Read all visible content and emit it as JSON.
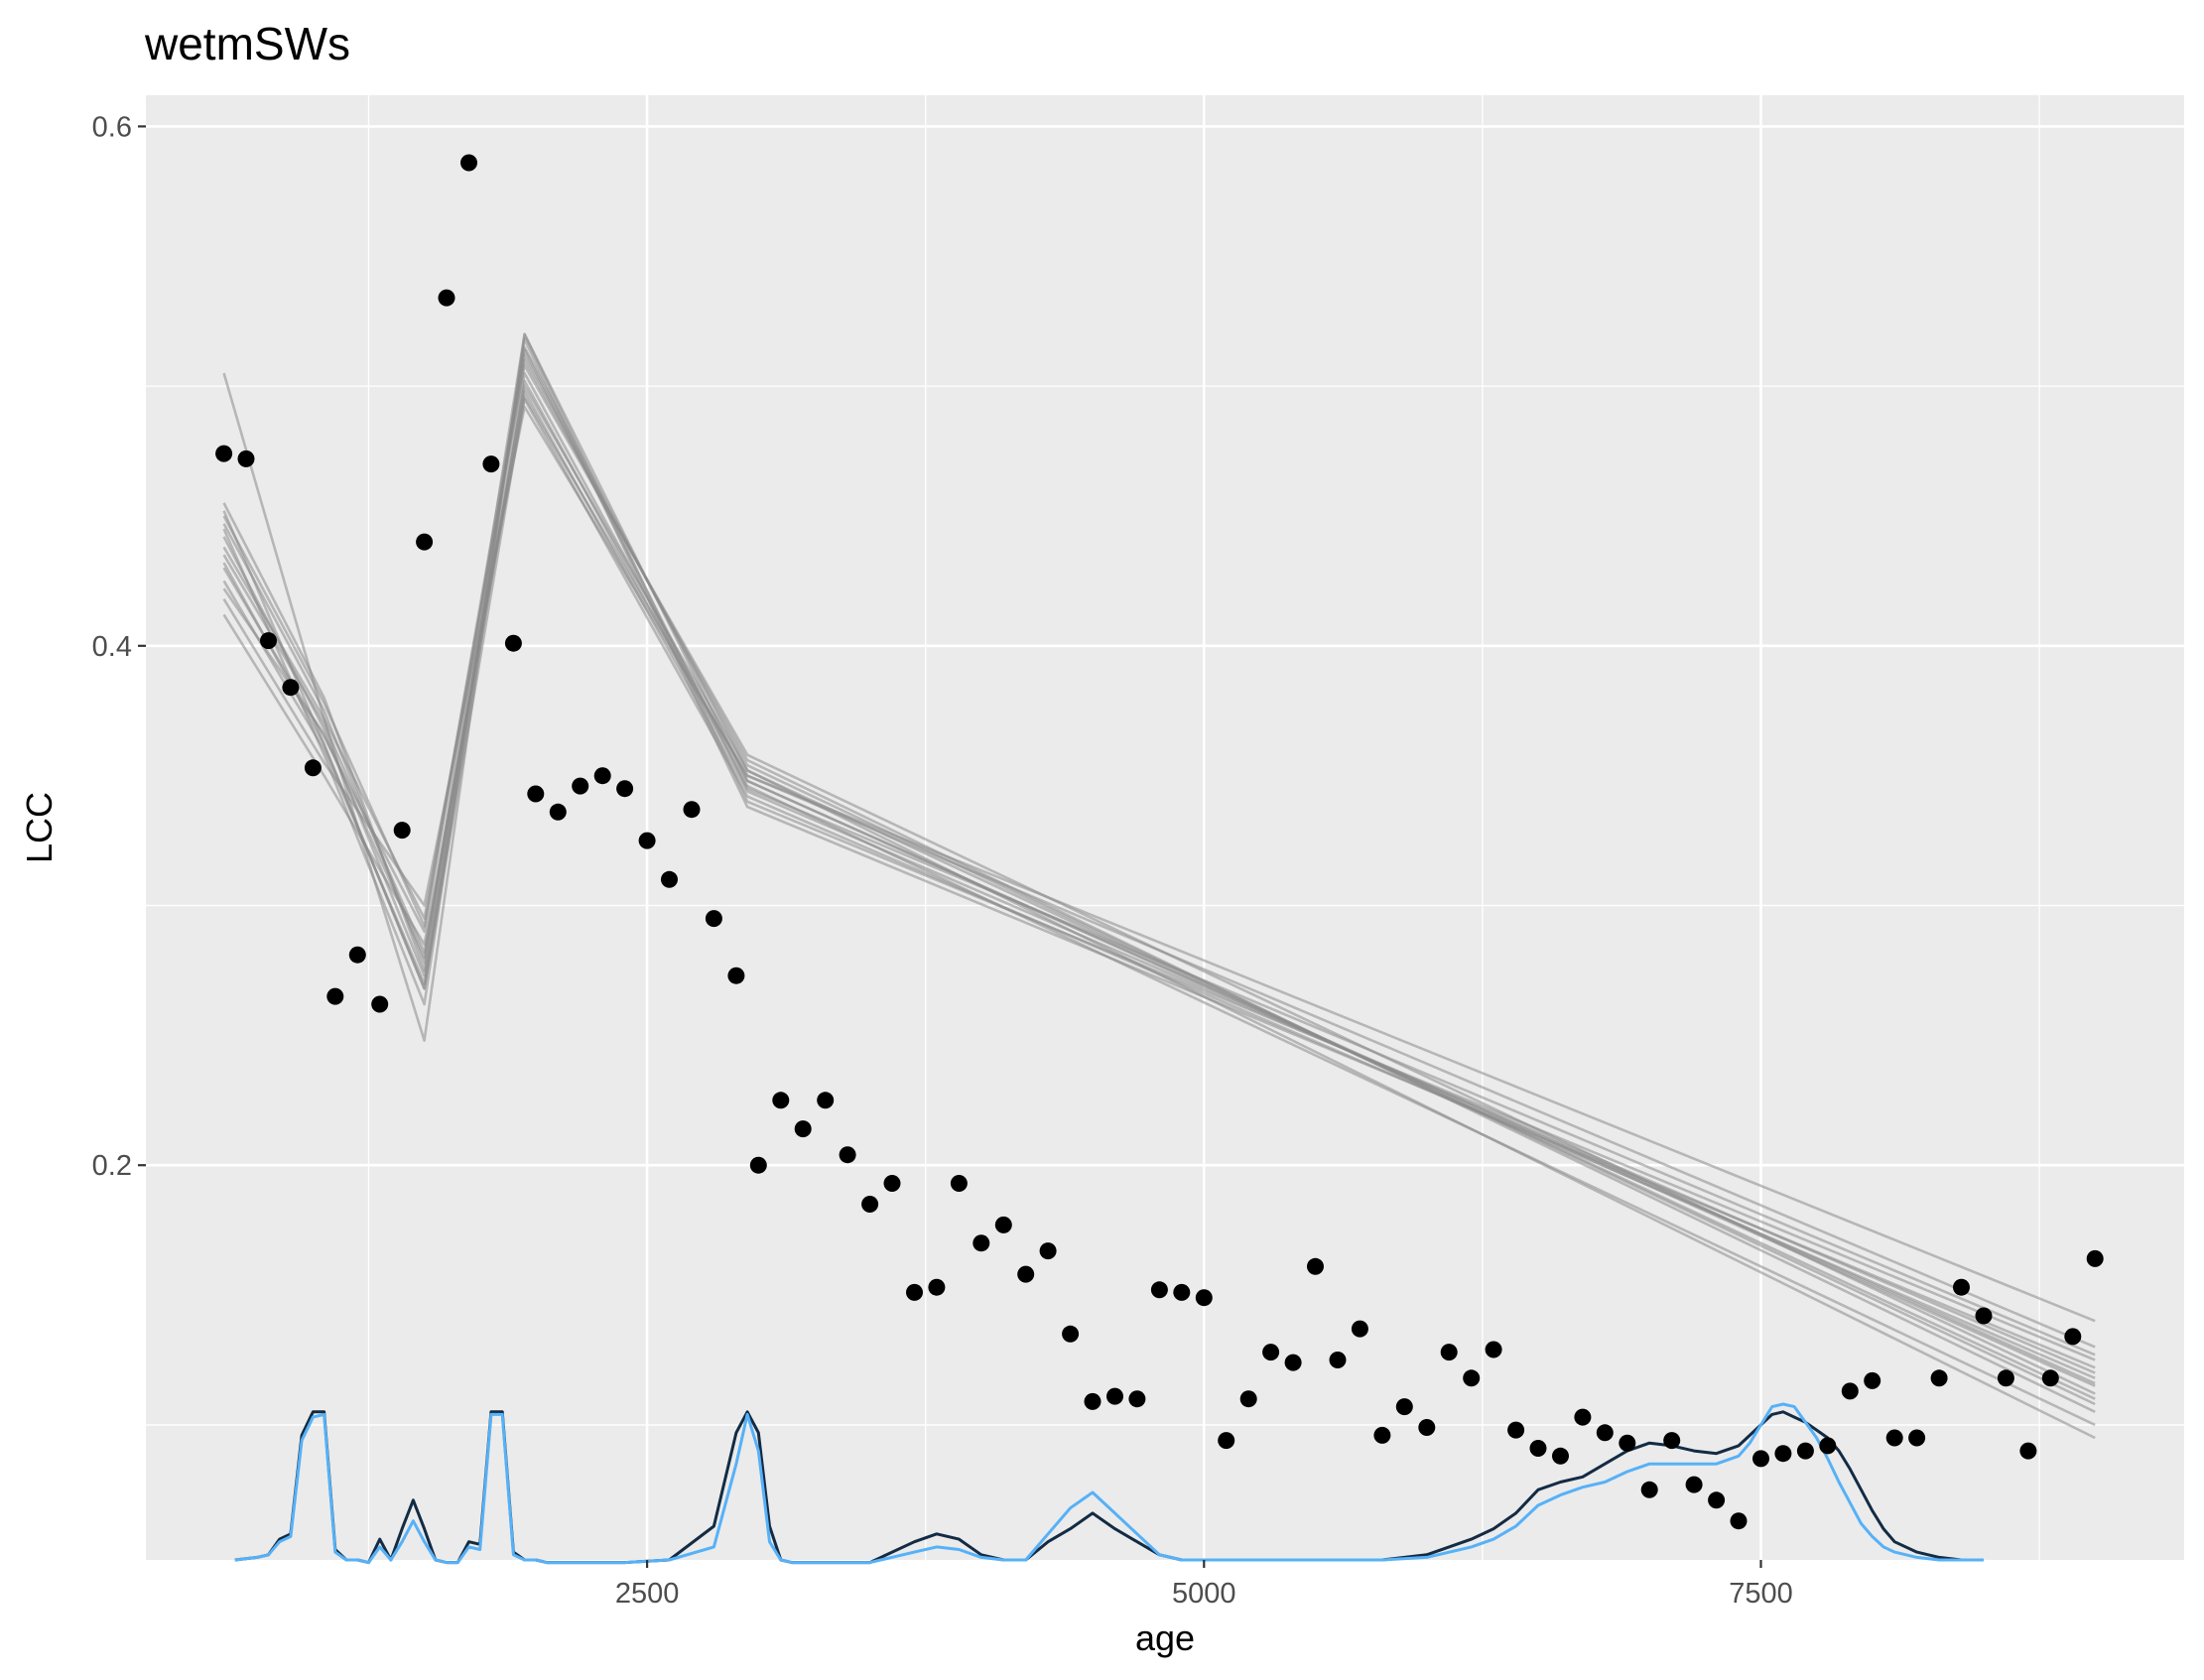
{
  "chart_data": {
    "type": "scatter",
    "title": "wetmSWs",
    "xlabel": "age",
    "ylabel": "LCC",
    "x_ticks": [
      2500,
      5000,
      7500
    ],
    "y_ticks": [
      0.2,
      0.4,
      0.6
    ],
    "x_tick_labels": [
      "2500",
      "5000",
      "7500"
    ],
    "y_tick_labels": [
      "0.2",
      "0.4",
      "0.6"
    ],
    "xlim": [
      250,
      9400
    ],
    "ylim": [
      0.048,
      0.612
    ],
    "grid": true,
    "legend": "none",
    "colors": {
      "panel": "#ebebeb",
      "grid": "#ffffff",
      "points": "#000000",
      "fit_lines": "#8a8a8a",
      "density_dark": "#132b43",
      "density_light": "#56b1f7"
    },
    "series": [
      {
        "type": "points",
        "x": [
          600,
          700,
          800,
          900,
          1000,
          1100,
          1200,
          1300,
          1400,
          1500,
          1600,
          1700,
          1800,
          1900,
          2000,
          2100,
          2200,
          2300,
          2400,
          2500,
          2600,
          2700,
          2800,
          2900,
          3000,
          3100,
          3200,
          3300,
          3400,
          3500,
          3600,
          3700,
          3800,
          3900,
          4000,
          4100,
          4200,
          4300,
          4400,
          4500,
          4600,
          4700,
          4800,
          4900,
          5000,
          5100,
          5200,
          5300,
          5400,
          5500,
          5600,
          5700,
          5800,
          5900,
          6000,
          6100,
          6200,
          6300,
          6400,
          6500,
          6600,
          6700,
          6800,
          6900,
          7000,
          7100,
          7200,
          7300,
          7400,
          7500,
          7600,
          7700,
          7800,
          7900,
          8000,
          8100,
          8200,
          8300,
          8400,
          8500,
          8600,
          8700,
          8800,
          8900,
          9000
        ],
        "y": [
          0.474,
          0.472,
          0.402,
          0.384,
          0.353,
          0.265,
          0.281,
          0.262,
          0.329,
          0.44,
          0.534,
          0.586,
          0.47,
          0.401,
          0.343,
          0.336,
          0.346,
          0.35,
          0.345,
          0.325,
          0.31,
          0.337,
          0.295,
          0.273,
          0.2,
          0.225,
          0.214,
          0.225,
          0.204,
          0.185,
          0.193,
          0.151,
          0.153,
          0.193,
          0.17,
          0.177,
          0.158,
          0.167,
          0.135,
          0.109,
          0.111,
          0.11,
          0.152,
          0.151,
          0.149,
          0.094,
          0.11,
          0.128,
          0.124,
          0.161,
          0.125,
          0.137,
          0.096,
          0.107,
          0.099,
          0.128,
          0.118,
          0.129,
          0.098,
          0.091,
          0.088,
          0.103,
          0.097,
          0.093,
          0.075,
          0.094,
          0.077,
          0.071,
          0.063,
          0.087,
          0.089,
          0.09,
          0.092,
          0.113,
          0.117,
          0.095,
          0.095,
          0.118,
          0.153,
          0.142,
          0.118,
          0.09,
          0.118,
          0.134,
          0.164
        ]
      },
      {
        "type": "fit-lines",
        "lines": [
          {
            "x": [
              600,
              1050,
              1500,
              1950,
              2950,
              9000
            ],
            "y": [
              0.452,
              0.362,
              0.268,
              0.515,
              0.352,
              0.11
            ]
          },
          {
            "x": [
              600,
              1050,
              1500,
              1950,
              2950,
              9000
            ],
            "y": [
              0.442,
              0.368,
              0.273,
              0.505,
              0.348,
              0.115
            ]
          },
          {
            "x": [
              600,
              1050,
              1500,
              1950,
              2950,
              9000
            ],
            "y": [
              0.435,
              0.37,
              0.282,
              0.498,
              0.344,
              0.12
            ]
          },
          {
            "x": [
              600,
              1050,
              1500,
              1950,
              2950,
              9000
            ],
            "y": [
              0.43,
              0.365,
              0.29,
              0.51,
              0.356,
              0.105
            ]
          },
          {
            "x": [
              600,
              1050,
              1500,
              1950,
              2950,
              9000
            ],
            "y": [
              0.447,
              0.375,
              0.278,
              0.52,
              0.34,
              0.125
            ]
          },
          {
            "x": [
              600,
              1050,
              1500,
              1950,
              2950,
              9000
            ],
            "y": [
              0.418,
              0.355,
              0.3,
              0.492,
              0.35,
              0.13
            ]
          },
          {
            "x": [
              600,
              1050,
              1500,
              1950,
              2950,
              9000
            ],
            "y": [
              0.425,
              0.36,
              0.27,
              0.502,
              0.346,
              0.1
            ]
          },
          {
            "x": [
              600,
              1050,
              1500,
              1950,
              2950,
              9000
            ],
            "y": [
              0.455,
              0.38,
              0.275,
              0.512,
              0.354,
              0.108
            ]
          },
          {
            "x": [
              600,
              1050,
              1500,
              1950,
              2950,
              9000
            ],
            "y": [
              0.412,
              0.35,
              0.285,
              0.495,
              0.342,
              0.118
            ]
          },
          {
            "x": [
              600,
              1050,
              1500,
              1950,
              2950,
              9000
            ],
            "y": [
              0.438,
              0.372,
              0.295,
              0.508,
              0.358,
              0.112
            ]
          },
          {
            "x": [
              600,
              1050,
              1500,
              1950,
              2950,
              9000
            ],
            "y": [
              0.445,
              0.358,
              0.262,
              0.518,
              0.338,
              0.122
            ]
          },
          {
            "x": [
              600,
              1050,
              1500,
              1950,
              2950,
              9000
            ],
            "y": [
              0.422,
              0.366,
              0.28,
              0.5,
              0.352,
              0.095
            ]
          },
          {
            "x": [
              600,
              1050,
              1500,
              1950,
              2950,
              9000
            ],
            "y": [
              0.45,
              0.378,
              0.292,
              0.514,
              0.345,
              0.127
            ]
          },
          {
            "x": [
              600,
              1050,
              1500,
              1950,
              2950,
              9000
            ],
            "y": [
              0.432,
              0.362,
              0.268,
              0.496,
              0.35,
              0.14
            ]
          },
          {
            "x": [
              600,
              1050,
              1500,
              1950,
              2950,
              9000
            ],
            "y": [
              0.505,
              0.372,
              0.248,
              0.52,
              0.348,
              0.116
            ]
          }
        ]
      },
      {
        "type": "density",
        "name": "dark",
        "x": [
          650,
          750,
          800,
          850,
          900,
          950,
          1000,
          1050,
          1100,
          1150,
          1200,
          1250,
          1300,
          1350,
          1400,
          1450,
          1500,
          1550,
          1600,
          1650,
          1700,
          1750,
          1800,
          1850,
          1900,
          1950,
          2000,
          2050,
          2100,
          2200,
          2400,
          2600,
          2800,
          2900,
          2950,
          3000,
          3050,
          3100,
          3150,
          3200,
          3300,
          3500,
          3700,
          3800,
          3900,
          4000,
          4100,
          4200,
          4300,
          4400,
          4500,
          4600,
          4700,
          4800,
          4900,
          5000,
          5200,
          5400,
          5600,
          5800,
          6000,
          6200,
          6300,
          6400,
          6500,
          6600,
          6700,
          6800,
          6900,
          7000,
          7100,
          7200,
          7300,
          7400,
          7450,
          7500,
          7550,
          7600,
          7650,
          7700,
          7750,
          7800,
          7850,
          7900,
          7950,
          8000,
          8050,
          8100,
          8200,
          8300,
          8400,
          8500
        ],
        "y": [
          0.048,
          0.049,
          0.05,
          0.056,
          0.058,
          0.096,
          0.105,
          0.105,
          0.052,
          0.048,
          0.048,
          0.047,
          0.056,
          0.048,
          0.06,
          0.071,
          0.06,
          0.048,
          0.047,
          0.047,
          0.055,
          0.054,
          0.105,
          0.105,
          0.051,
          0.048,
          0.048,
          0.047,
          0.047,
          0.047,
          0.047,
          0.048,
          0.061,
          0.097,
          0.105,
          0.097,
          0.061,
          0.048,
          0.047,
          0.047,
          0.047,
          0.047,
          0.055,
          0.058,
          0.056,
          0.05,
          0.048,
          0.048,
          0.055,
          0.06,
          0.066,
          0.06,
          0.055,
          0.05,
          0.048,
          0.048,
          0.048,
          0.048,
          0.048,
          0.048,
          0.05,
          0.056,
          0.06,
          0.066,
          0.075,
          0.078,
          0.08,
          0.085,
          0.09,
          0.093,
          0.092,
          0.09,
          0.089,
          0.092,
          0.096,
          0.1,
          0.104,
          0.105,
          0.103,
          0.101,
          0.098,
          0.095,
          0.09,
          0.083,
          0.075,
          0.067,
          0.06,
          0.055,
          0.051,
          0.049,
          0.048,
          0.048
        ]
      },
      {
        "type": "density",
        "name": "light",
        "x": [
          650,
          750,
          800,
          850,
          900,
          950,
          1000,
          1050,
          1100,
          1150,
          1200,
          1250,
          1300,
          1350,
          1400,
          1450,
          1500,
          1550,
          1600,
          1650,
          1700,
          1750,
          1800,
          1850,
          1900,
          1950,
          2000,
          2050,
          2100,
          2200,
          2400,
          2600,
          2800,
          2900,
          2950,
          3000,
          3050,
          3100,
          3150,
          3200,
          3300,
          3500,
          3700,
          3800,
          3900,
          4000,
          4100,
          4200,
          4300,
          4400,
          4500,
          4600,
          4700,
          4800,
          4900,
          5000,
          5200,
          5400,
          5600,
          5800,
          6000,
          6200,
          6300,
          6400,
          6500,
          6600,
          6700,
          6800,
          6900,
          7000,
          7100,
          7200,
          7300,
          7400,
          7450,
          7500,
          7550,
          7600,
          7650,
          7700,
          7750,
          7800,
          7850,
          7900,
          7950,
          8000,
          8050,
          8100,
          8200,
          8300,
          8400,
          8500
        ],
        "y": [
          0.048,
          0.049,
          0.05,
          0.055,
          0.057,
          0.094,
          0.103,
          0.104,
          0.051,
          0.048,
          0.048,
          0.047,
          0.053,
          0.048,
          0.055,
          0.063,
          0.055,
          0.048,
          0.047,
          0.047,
          0.053,
          0.052,
          0.104,
          0.104,
          0.05,
          0.048,
          0.048,
          0.047,
          0.047,
          0.047,
          0.047,
          0.048,
          0.053,
          0.085,
          0.104,
          0.09,
          0.055,
          0.048,
          0.047,
          0.047,
          0.047,
          0.047,
          0.051,
          0.053,
          0.052,
          0.049,
          0.048,
          0.048,
          0.058,
          0.068,
          0.074,
          0.066,
          0.058,
          0.05,
          0.048,
          0.048,
          0.048,
          0.048,
          0.048,
          0.048,
          0.049,
          0.053,
          0.056,
          0.061,
          0.069,
          0.073,
          0.076,
          0.078,
          0.082,
          0.085,
          0.085,
          0.085,
          0.085,
          0.088,
          0.093,
          0.1,
          0.107,
          0.108,
          0.107,
          0.101,
          0.095,
          0.087,
          0.078,
          0.07,
          0.062,
          0.057,
          0.053,
          0.051,
          0.049,
          0.048,
          0.048,
          0.048
        ]
      }
    ]
  }
}
